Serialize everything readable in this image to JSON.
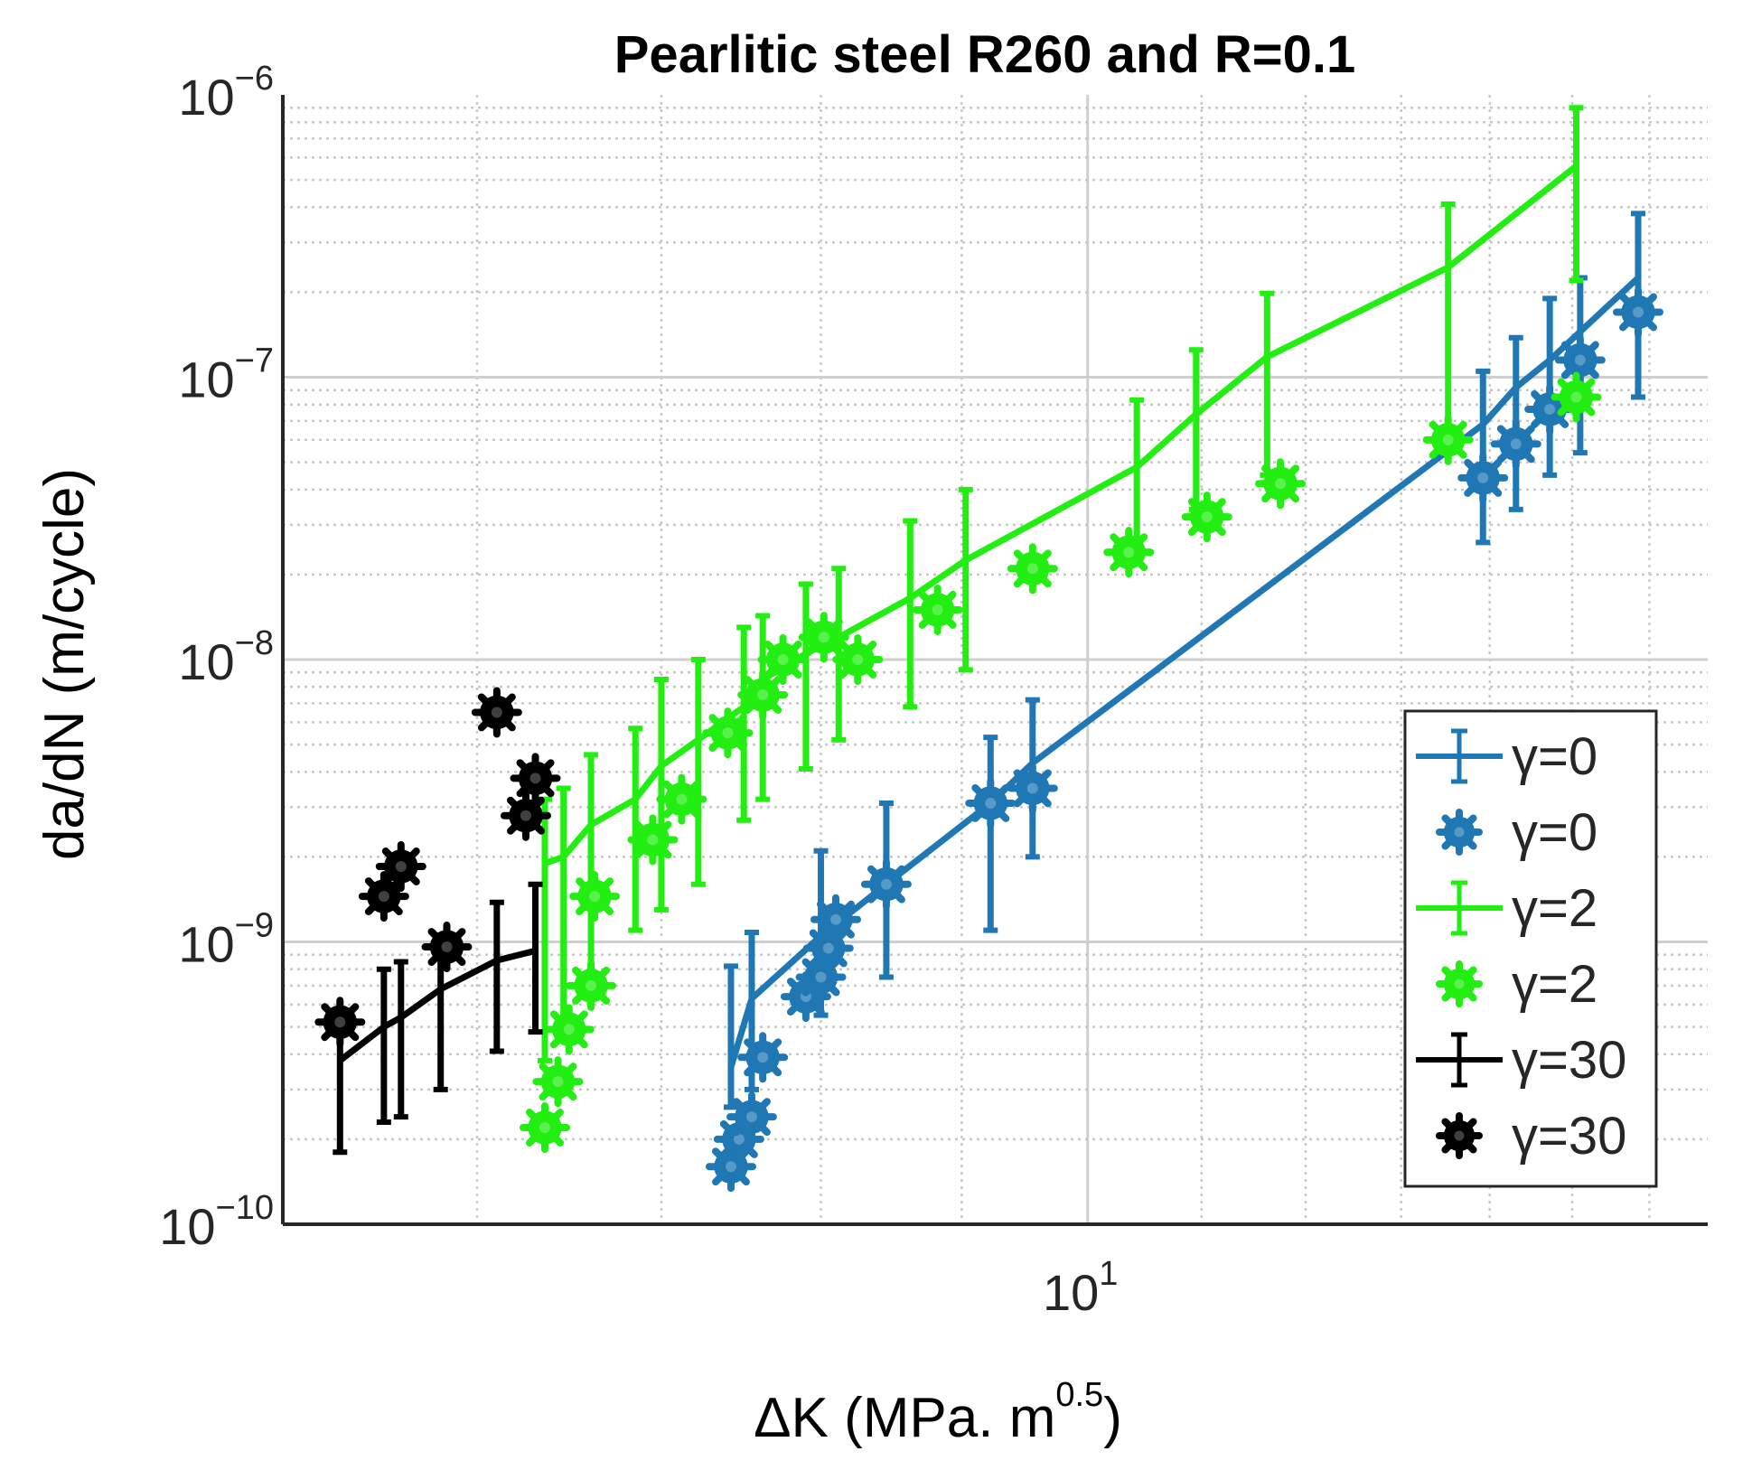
{
  "chart_data": {
    "type": "scatter",
    "title": "Pearlitic steel R260 and R=0.1",
    "xlabel": "ΔK (MPa. m",
    "xlabel_sup": "0.5",
    "xlabel_tail": ")",
    "ylabel": "da/dN (m/cycle)",
    "xscale": "log",
    "yscale": "log",
    "xlim": [
      5.1,
      16.8
    ],
    "ylim": [
      1e-10,
      1e-06
    ],
    "grid": true,
    "minor_grid": true,
    "legend_position": "lower-right",
    "x_tick_labels": [
      {
        "base": "10",
        "exp": "1",
        "value": 10
      }
    ],
    "y_tick_labels": [
      {
        "base": "10",
        "exp": "−10",
        "value": 1e-10
      },
      {
        "base": "10",
        "exp": "−9",
        "value": 1e-09
      },
      {
        "base": "10",
        "exp": "−8",
        "value": 1e-08
      },
      {
        "base": "10",
        "exp": "−7",
        "value": 1e-07
      },
      {
        "base": "10",
        "exp": "−6",
        "value": 1e-06
      }
    ],
    "fits": [
      {
        "name": "γ=0",
        "color": "#1f77b4",
        "points": [
          {
            "x": 7.42,
            "y": 3.6e-10,
            "low": 2.6e-10,
            "high": 8.2e-10
          },
          {
            "x": 7.55,
            "y": 6.3e-10,
            "low": 3e-10,
            "high": 1.08e-09
          },
          {
            "x": 8.0,
            "y": 1.05e-09,
            "low": 5.5e-10,
            "high": 2.1e-09
          },
          {
            "x": 8.45,
            "y": 1.6e-09,
            "low": 7.5e-10,
            "high": 3.1e-09
          },
          {
            "x": 9.22,
            "y": 3.1e-09,
            "low": 1.1e-09,
            "high": 5.3e-09
          },
          {
            "x": 9.55,
            "y": 4.3e-09,
            "low": 2e-09,
            "high": 7.2e-09
          },
          {
            "x": 13.92,
            "y": 6.8e-08,
            "low": 2.6e-08,
            "high": 1.05e-07
          },
          {
            "x": 14.31,
            "y": 9.2e-08,
            "low": 3.4e-08,
            "high": 1.38e-07
          },
          {
            "x": 14.72,
            "y": 1.15e-07,
            "low": 4.5e-08,
            "high": 1.9e-07
          },
          {
            "x": 15.1,
            "y": 1.45e-07,
            "low": 5.4e-08,
            "high": 2.25e-07
          },
          {
            "x": 15.85,
            "y": 2.25e-07,
            "low": 8.5e-08,
            "high": 3.8e-07
          }
        ]
      },
      {
        "name": "γ=2",
        "color": "#22ee11",
        "points": [
          {
            "x": 6.35,
            "y": 1.9e-09,
            "low": 3.8e-10,
            "high": 3.2e-09
          },
          {
            "x": 6.45,
            "y": 2e-09,
            "low": 4.8e-10,
            "high": 3.5e-09
          },
          {
            "x": 6.6,
            "y": 2.6e-09,
            "low": 7e-10,
            "high": 4.6e-09
          },
          {
            "x": 6.85,
            "y": 3.2e-09,
            "low": 1.1e-09,
            "high": 5.7e-09
          },
          {
            "x": 7.0,
            "y": 4.2e-09,
            "low": 1.3e-09,
            "high": 8.5e-09
          },
          {
            "x": 7.22,
            "y": 5.2e-09,
            "low": 1.6e-09,
            "high": 1e-08
          },
          {
            "x": 7.5,
            "y": 6.8e-09,
            "low": 2.7e-09,
            "high": 1.3e-08
          },
          {
            "x": 7.62,
            "y": 8.5e-09,
            "low": 3.2e-09,
            "high": 1.43e-08
          },
          {
            "x": 7.9,
            "y": 1.05e-08,
            "low": 4.1e-09,
            "high": 1.85e-08
          },
          {
            "x": 8.12,
            "y": 1.2e-08,
            "low": 5.2e-09,
            "high": 2.1e-08
          },
          {
            "x": 8.62,
            "y": 1.65e-08,
            "low": 6.8e-09,
            "high": 3.1e-08
          },
          {
            "x": 9.03,
            "y": 2.25e-08,
            "low": 9.2e-09,
            "high": 4e-08
          },
          {
            "x": 10.42,
            "y": 4.8e-08,
            "low": 2.4e-08,
            "high": 8.3e-08
          },
          {
            "x": 10.95,
            "y": 7.4e-08,
            "low": 3.4e-08,
            "high": 1.25e-07
          },
          {
            "x": 11.62,
            "y": 1.18e-07,
            "low": 4.5e-08,
            "high": 1.98e-07
          },
          {
            "x": 13.52,
            "y": 2.45e-07,
            "low": 6.2e-08,
            "high": 4.1e-07
          },
          {
            "x": 15.05,
            "y": 5.6e-07,
            "low": 2.2e-07,
            "high": 9e-07
          }
        ]
      },
      {
        "name": "γ=30",
        "color": "#000000",
        "points": [
          {
            "x": 5.35,
            "y": 3.8e-10,
            "low": 1.8e-10,
            "high": 5.5e-10
          },
          {
            "x": 5.55,
            "y": 5e-10,
            "low": 2.3e-10,
            "high": 8e-10
          },
          {
            "x": 5.63,
            "y": 5.4e-10,
            "low": 2.4e-10,
            "high": 8.5e-10
          },
          {
            "x": 5.82,
            "y": 6.8e-10,
            "low": 3e-10,
            "high": 9.8e-10
          },
          {
            "x": 6.1,
            "y": 8.6e-10,
            "low": 4.1e-10,
            "high": 1.38e-09
          },
          {
            "x": 6.3,
            "y": 9.3e-10,
            "low": 4.8e-10,
            "high": 1.6e-09
          }
        ]
      }
    ],
    "markers": [
      {
        "name": "γ=0",
        "color": "#1f77b4",
        "points": [
          {
            "x": 7.42,
            "y": 1.6e-10
          },
          {
            "x": 7.47,
            "y": 2e-10
          },
          {
            "x": 7.55,
            "y": 2.4e-10
          },
          {
            "x": 7.62,
            "y": 3.9e-10
          },
          {
            "x": 7.9,
            "y": 6.4e-10
          },
          {
            "x": 8.0,
            "y": 7.5e-10
          },
          {
            "x": 8.05,
            "y": 9.5e-10
          },
          {
            "x": 8.1,
            "y": 1.2e-09
          },
          {
            "x": 8.45,
            "y": 1.6e-09
          },
          {
            "x": 9.22,
            "y": 3.1e-09
          },
          {
            "x": 9.55,
            "y": 3.5e-09
          },
          {
            "x": 13.92,
            "y": 4.4e-08
          },
          {
            "x": 14.31,
            "y": 5.8e-08
          },
          {
            "x": 14.72,
            "y": 7.7e-08
          },
          {
            "x": 15.1,
            "y": 1.15e-07
          },
          {
            "x": 15.85,
            "y": 1.7e-07
          }
        ]
      },
      {
        "name": "γ=2",
        "color": "#22ee11",
        "points": [
          {
            "x": 6.35,
            "y": 2.2e-10
          },
          {
            "x": 6.42,
            "y": 3.2e-10
          },
          {
            "x": 6.48,
            "y": 4.9e-10
          },
          {
            "x": 6.6,
            "y": 7e-10
          },
          {
            "x": 6.62,
            "y": 1.45e-09
          },
          {
            "x": 6.95,
            "y": 2.3e-09
          },
          {
            "x": 7.12,
            "y": 3.2e-09
          },
          {
            "x": 7.4,
            "y": 5.5e-09
          },
          {
            "x": 7.62,
            "y": 7.5e-09
          },
          {
            "x": 7.75,
            "y": 1e-08
          },
          {
            "x": 8.02,
            "y": 1.2e-08
          },
          {
            "x": 8.25,
            "y": 1e-08
          },
          {
            "x": 8.82,
            "y": 1.5e-08
          },
          {
            "x": 9.55,
            "y": 2.1e-08
          },
          {
            "x": 10.35,
            "y": 2.4e-08
          },
          {
            "x": 11.05,
            "y": 3.2e-08
          },
          {
            "x": 11.75,
            "y": 4.2e-08
          },
          {
            "x": 13.52,
            "y": 6e-08
          },
          {
            "x": 15.05,
            "y": 8.5e-08
          }
        ]
      },
      {
        "name": "γ=30",
        "color": "#000000",
        "points": [
          {
            "x": 5.35,
            "y": 5.2e-10
          },
          {
            "x": 5.55,
            "y": 1.45e-09
          },
          {
            "x": 5.63,
            "y": 1.85e-09
          },
          {
            "x": 5.85,
            "y": 9.6e-10
          },
          {
            "x": 6.1,
            "y": 6.5e-09
          },
          {
            "x": 6.25,
            "y": 2.8e-09
          },
          {
            "x": 6.3,
            "y": 3.8e-09
          }
        ]
      }
    ],
    "legend": [
      {
        "label": "γ=0",
        "kind": "errorbar",
        "color": "#1f77b4"
      },
      {
        "label": "γ=0",
        "kind": "marker",
        "color": "#1f77b4"
      },
      {
        "label": "γ=2",
        "kind": "errorbar",
        "color": "#22ee11"
      },
      {
        "label": "γ=2",
        "kind": "marker",
        "color": "#22ee11"
      },
      {
        "label": "γ=30",
        "kind": "errorbar",
        "color": "#000000"
      },
      {
        "label": "γ=30",
        "kind": "marker",
        "color": "#000000"
      }
    ]
  }
}
